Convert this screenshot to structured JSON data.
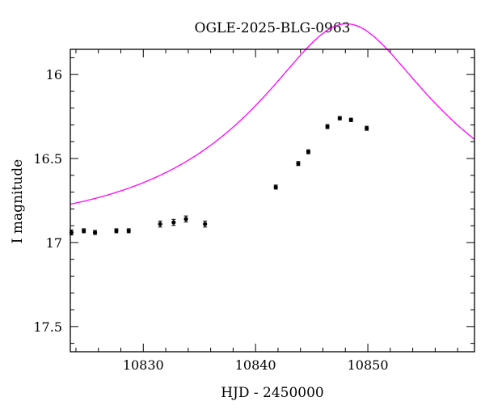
{
  "chart_data": {
    "type": "scatter",
    "title": "OGLE-2025-BLG-0963",
    "xlabel": "HJD - 2450000",
    "ylabel": "I magnitude",
    "xlim": [
      10823.5,
      10859.5
    ],
    "ylim": [
      17.65,
      15.85
    ],
    "y_inverted": true,
    "x_ticks": [
      10830,
      10840,
      10850
    ],
    "x_tick_labels": [
      "10830",
      "10840",
      "10850"
    ],
    "y_ticks": [
      16,
      16.5,
      17,
      17.5
    ],
    "y_tick_labels": [
      "16",
      "16.5",
      "17",
      "17.5"
    ],
    "grid": false,
    "colors": {
      "model": "#ff00ff",
      "points": "#000000"
    },
    "series": [
      {
        "kind": "points_with_errorbars",
        "x": [
          10823.6,
          10824.7,
          10825.7,
          10827.6,
          10828.7,
          10831.5,
          10832.7,
          10833.8,
          10835.5,
          10841.8,
          10843.8,
          10844.7,
          10846.4,
          10847.5,
          10848.5,
          10849.9
        ],
        "y": [
          16.94,
          16.93,
          16.94,
          16.93,
          16.93,
          16.89,
          16.88,
          16.86,
          16.89,
          16.67,
          16.53,
          16.46,
          16.31,
          16.26,
          16.27,
          16.32
        ],
        "yerr": [
          0.015,
          0.012,
          0.012,
          0.012,
          0.012,
          0.018,
          0.018,
          0.018,
          0.018,
          0.012,
          0.012,
          0.012,
          0.012,
          0.01,
          0.01,
          0.012
        ]
      },
      {
        "kind": "model_curve",
        "model": "pspl",
        "t0": 10848.1,
        "tE": 18.0,
        "u0": 0.335,
        "base_mag": 16.93
      }
    ]
  }
}
